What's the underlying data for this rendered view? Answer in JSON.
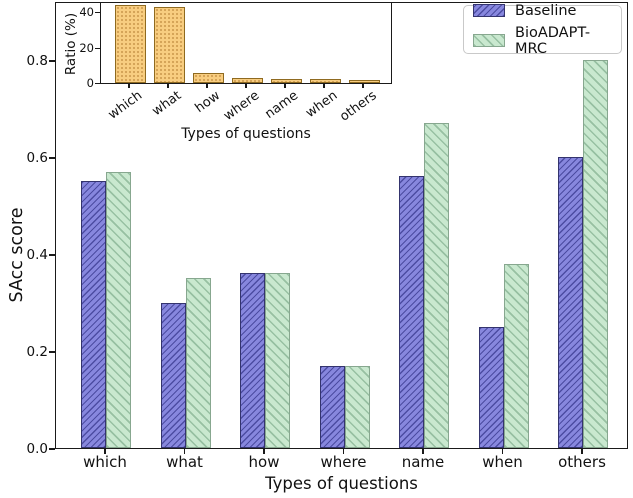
{
  "chart_data": [
    {
      "type": "bar",
      "role": "main",
      "title": "",
      "categories": [
        "which",
        "what",
        "how",
        "where",
        "name",
        "when",
        "others"
      ],
      "series": [
        {
          "name": "Baseline",
          "values": [
            0.55,
            0.3,
            0.36,
            0.17,
            0.56,
            0.25,
            0.6
          ],
          "color": "#8787de",
          "edge_color": "#34346e",
          "hatch": "//"
        },
        {
          "name": "BioADAPT-MRC",
          "values": [
            0.57,
            0.35,
            0.36,
            0.17,
            0.67,
            0.38,
            0.8
          ],
          "color": "#c9e8cf",
          "edge_color": "#87a78f",
          "hatch": "\\\\"
        }
      ],
      "xlabel": "Types of questions",
      "ylabel": "SAcc score",
      "ylim": [
        0,
        0.92
      ],
      "yticks": [
        "0.0",
        "0.2",
        "0.4",
        "0.6",
        "0.8"
      ],
      "ytick_values": [
        0.0,
        0.2,
        0.4,
        0.6,
        0.8
      ],
      "grid": false,
      "legend_position": "upper right"
    },
    {
      "type": "bar",
      "role": "inset",
      "title": "",
      "categories": [
        "which",
        "what",
        "how",
        "where",
        "name",
        "when",
        "others"
      ],
      "series": [
        {
          "name": "Ratio",
          "values": [
            44,
            43,
            5.5,
            3,
            2.5,
            2,
            1.5
          ],
          "color": "#f8cd80",
          "edge_color": "#8f6a20",
          "hatch": ".."
        }
      ],
      "xlabel": "Types of questions",
      "ylabel": "Ratio (%)",
      "ylim": [
        0,
        46
      ],
      "yticks": [
        "0",
        "20",
        "40"
      ],
      "ytick_values": [
        0,
        20,
        40
      ],
      "xtick_rotation_deg": 36,
      "grid": false,
      "legend_position": "none"
    }
  ],
  "legend": {
    "items": [
      {
        "label": "Baseline"
      },
      {
        "label": "BioADAPT-MRC"
      }
    ]
  }
}
